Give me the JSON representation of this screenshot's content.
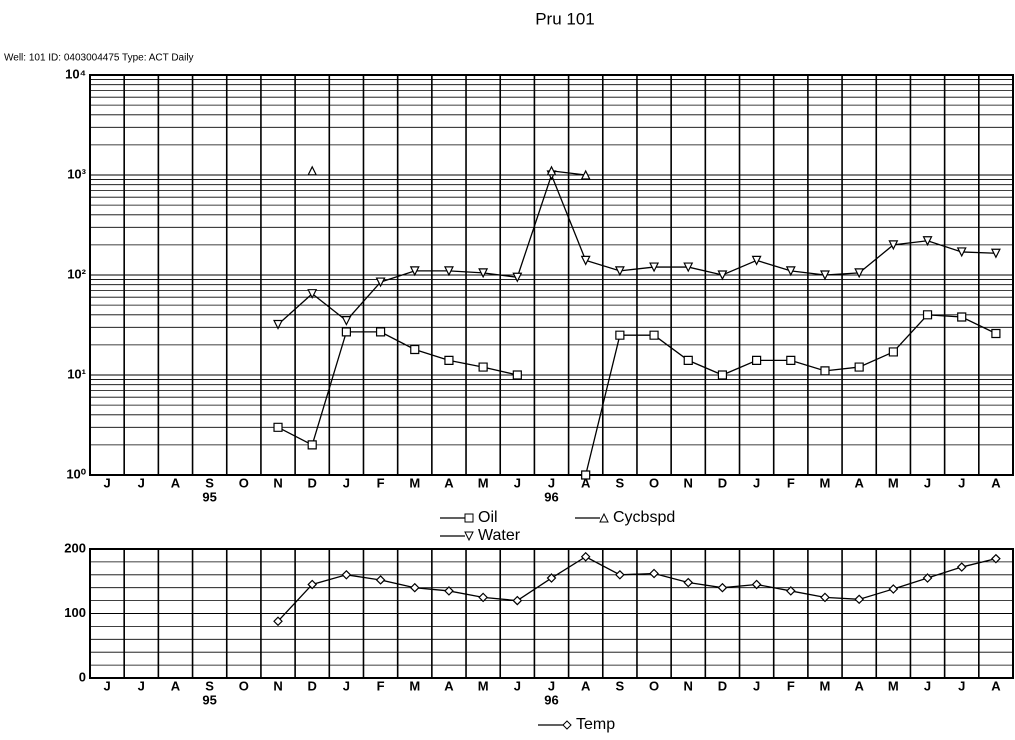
{
  "chart_data": [
    {
      "type": "line",
      "title": "Pru 101",
      "subtitle": "Well: 101 ID: 0403004475 Type: ACT Daily",
      "log_scale": true,
      "grid": true,
      "minor_grid": true,
      "categories": [
        "J",
        "J",
        "A",
        "S",
        "O",
        "N",
        "D",
        "J",
        "F",
        "M",
        "A",
        "M",
        "J",
        "J",
        "A",
        "S",
        "O",
        "N",
        "D",
        "J",
        "F",
        "M",
        "A",
        "M",
        "J",
        "J",
        "A"
      ],
      "year_labels": [
        null,
        null,
        null,
        "95",
        null,
        null,
        null,
        null,
        null,
        null,
        null,
        null,
        null,
        "96",
        null,
        null,
        null,
        null,
        null,
        null,
        null,
        null,
        null,
        null,
        null,
        null,
        null
      ],
      "ylim": [
        1,
        10000
      ],
      "yticks": [
        {
          "value": 1,
          "label": "10⁰"
        },
        {
          "value": 10,
          "label": "10¹"
        },
        {
          "value": 100,
          "label": "10²"
        },
        {
          "value": 1000,
          "label": "10³"
        },
        {
          "value": 10000,
          "label": "10⁴"
        }
      ],
      "series": [
        {
          "name": "Oil",
          "color": "#000000",
          "marker": "square",
          "values": [
            null,
            null,
            null,
            null,
            null,
            3,
            2,
            27,
            27,
            18,
            14,
            12,
            10,
            null,
            1,
            25,
            25,
            14,
            10,
            14,
            14,
            11,
            12,
            17,
            40,
            38,
            26
          ]
        },
        {
          "name": "Water",
          "color": "#000000",
          "marker": "triangle-down",
          "values": [
            null,
            null,
            null,
            null,
            null,
            32,
            65,
            35,
            85,
            110,
            110,
            105,
            95,
            1000,
            140,
            110,
            120,
            120,
            100,
            140,
            110,
            100,
            105,
            200,
            220,
            170,
            165
          ]
        },
        {
          "name": "Cycbspd",
          "color": "#000000",
          "marker": "triangle-up",
          "values": [
            null,
            null,
            null,
            null,
            null,
            null,
            1100,
            null,
            null,
            null,
            null,
            null,
            null,
            1100,
            1000,
            null,
            null,
            null,
            null,
            null,
            null,
            null,
            null,
            null,
            null,
            null,
            null
          ]
        }
      ]
    },
    {
      "type": "line",
      "log_scale": false,
      "grid": true,
      "minor_grid": true,
      "categories": [
        "J",
        "J",
        "A",
        "S",
        "O",
        "N",
        "D",
        "J",
        "F",
        "M",
        "A",
        "M",
        "J",
        "J",
        "A",
        "S",
        "O",
        "N",
        "D",
        "J",
        "F",
        "M",
        "A",
        "M",
        "J",
        "J",
        "A"
      ],
      "year_labels": [
        null,
        null,
        null,
        "95",
        null,
        null,
        null,
        null,
        null,
        null,
        null,
        null,
        null,
        "96",
        null,
        null,
        null,
        null,
        null,
        null,
        null,
        null,
        null,
        null,
        null,
        null,
        null
      ],
      "ylim": [
        0,
        200
      ],
      "yticks": [
        0,
        100,
        200
      ],
      "series": [
        {
          "name": "Temp",
          "color": "#000000",
          "marker": "diamond",
          "values": [
            null,
            null,
            null,
            null,
            null,
            88,
            145,
            160,
            152,
            140,
            135,
            125,
            120,
            155,
            188,
            160,
            162,
            148,
            140,
            145,
            135,
            125,
            122,
            138,
            155,
            172,
            185
          ]
        }
      ]
    }
  ]
}
